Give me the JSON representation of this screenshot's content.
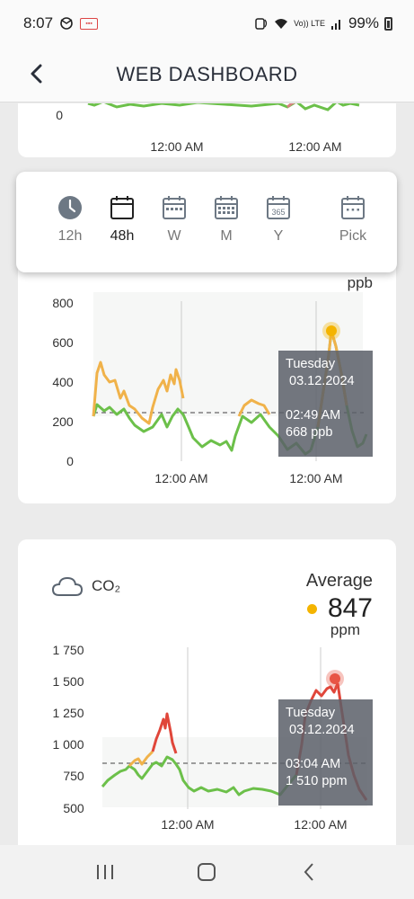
{
  "status_bar": {
    "time": "8:07",
    "network": "Vo)) LTE",
    "battery": "99%"
  },
  "header": {
    "title": "WEB DASHBOARD"
  },
  "top_card": {
    "y_tick": "0",
    "x_ticks": [
      "12:00 AM",
      "12:00 AM"
    ]
  },
  "range_selector": {
    "options": [
      {
        "label": "12h",
        "icon": "clock-icon"
      },
      {
        "label": "48h",
        "icon": "calendar-icon"
      },
      {
        "label": "W",
        "icon": "calendar-week-icon"
      },
      {
        "label": "M",
        "icon": "calendar-month-icon"
      },
      {
        "label": "Y",
        "icon": "calendar-year-icon",
        "badge": "365"
      },
      {
        "label": "Pick",
        "icon": "calendar-pick-icon"
      }
    ],
    "selected": "48h"
  },
  "mid_chart": {
    "unit": "ppb",
    "y_ticks": [
      "800",
      "600",
      "400",
      "200",
      "0"
    ],
    "x_ticks": [
      "12:00 AM",
      "12:00 AM"
    ],
    "tooltip": {
      "day": "Tuesday",
      "date": "03.12.2024",
      "time": "02:49 AM",
      "value": "668 ppb"
    }
  },
  "co2_card": {
    "label": "CO₂",
    "average_label": "Average",
    "average_value": "847",
    "unit": "ppm",
    "y_ticks": [
      "1 750",
      "1 500",
      "1 250",
      "1 000",
      "750",
      "500"
    ],
    "x_ticks": [
      "12:00 AM",
      "12:00 AM"
    ],
    "tooltip": {
      "day": "Tuesday",
      "date": "03.12.2024",
      "time": "03:04 AM",
      "value": "1 510 ppm"
    }
  },
  "colors": {
    "good": "#6cc04a",
    "moderate": "#f0b24a",
    "bad": "#e0463a",
    "marker_ppb": "#f4b400",
    "marker_co2": "#e85545"
  }
}
